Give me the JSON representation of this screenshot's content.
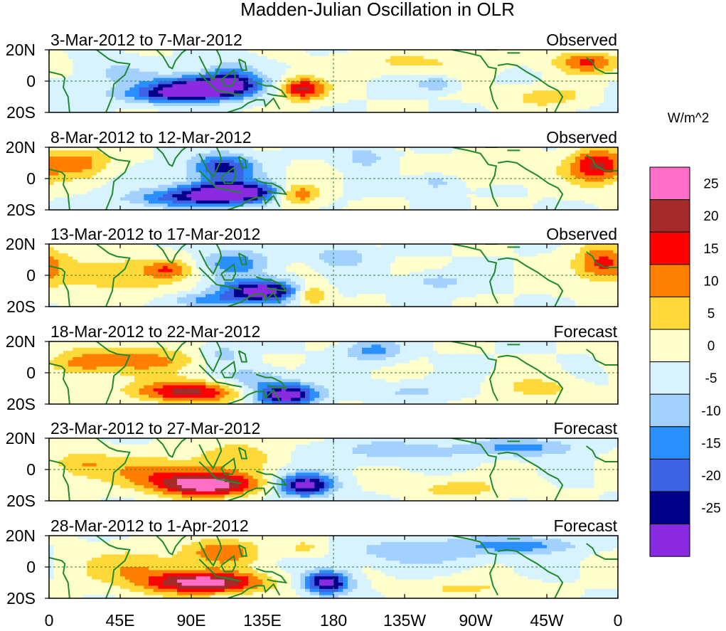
{
  "chart_data": {
    "type": "heatmap",
    "title": "Madden-Julian Oscillation in OLR",
    "units_label": "W/m^2",
    "x_tick_labels": [
      "0",
      "45E",
      "90E",
      "135E",
      "180",
      "135W",
      "90W",
      "45W",
      "0"
    ],
    "y_tick_labels": [
      "20N",
      "0",
      "20S"
    ],
    "x_range_deg": [
      0,
      360
    ],
    "y_range_deg": [
      -20,
      20
    ],
    "colorbar": {
      "levels": [
        25,
        20,
        15,
        10,
        5,
        0,
        -5,
        -10,
        -15,
        -20,
        -25
      ],
      "colors": [
        "#ff6ec7",
        "#a52a2a",
        "#ff0000",
        "#ff7f00",
        "#ffd939",
        "#ffffcc",
        "#d7f3ff",
        "#a3d1ff",
        "#2a8fff",
        "#3c63e6",
        "#00008b",
        "#8a2be2"
      ]
    },
    "panels": [
      {
        "period": "3-Mar-2012 to 7-Mar-2012",
        "kind": "Observed",
        "anomalies": [
          {
            "lon": 98,
            "lat": -4,
            "sx": 22,
            "sy": 5,
            "v": -32
          },
          {
            "lon": 115,
            "lat": 2,
            "sx": 12,
            "sy": 7,
            "v": -14
          },
          {
            "lon": 75,
            "lat": -9,
            "sx": 22,
            "sy": 4,
            "v": -15
          },
          {
            "lon": 42,
            "lat": 6,
            "sx": 16,
            "sy": 6,
            "v": -6
          },
          {
            "lon": 160,
            "lat": -5,
            "sx": 10,
            "sy": 5,
            "v": 22
          },
          {
            "lon": 230,
            "lat": 12,
            "sx": 30,
            "sy": 5,
            "v": 6
          },
          {
            "lon": 245,
            "lat": -2,
            "sx": 8,
            "sy": 3,
            "v": -11
          },
          {
            "lon": 340,
            "lat": 12,
            "sx": 14,
            "sy": 5,
            "v": 16
          },
          {
            "lon": 315,
            "lat": -10,
            "sx": 18,
            "sy": 5,
            "v": 8
          },
          {
            "lon": 12,
            "lat": -8,
            "sx": 14,
            "sy": 5,
            "v": -5
          }
        ]
      },
      {
        "period": "8-Mar-2012 to 12-Mar-2012",
        "kind": "Observed",
        "anomalies": [
          {
            "lon": 115,
            "lat": -9,
            "sx": 24,
            "sy": 5,
            "v": -32
          },
          {
            "lon": 110,
            "lat": 7,
            "sx": 14,
            "sy": 6,
            "v": -22
          },
          {
            "lon": 82,
            "lat": -13,
            "sx": 26,
            "sy": 4,
            "v": -12
          },
          {
            "lon": 157,
            "lat": -10,
            "sx": 10,
            "sy": 5,
            "v": 18
          },
          {
            "lon": 20,
            "lat": 10,
            "sx": 14,
            "sy": 7,
            "v": 12
          },
          {
            "lon": 200,
            "lat": 14,
            "sx": 10,
            "sy": 5,
            "v": -8
          },
          {
            "lon": 246,
            "lat": -2,
            "sx": 10,
            "sy": 4,
            "v": -9
          },
          {
            "lon": 346,
            "lat": 8,
            "sx": 12,
            "sy": 8,
            "v": 20
          },
          {
            "lon": 278,
            "lat": 6,
            "sx": 30,
            "sy": 6,
            "v": 5
          }
        ]
      },
      {
        "period": "13-Mar-2012 to 17-Mar-2012",
        "kind": "Observed",
        "anomalies": [
          {
            "lon": 135,
            "lat": -10,
            "sx": 18,
            "sy": 5,
            "v": -30
          },
          {
            "lon": 118,
            "lat": 8,
            "sx": 14,
            "sy": 6,
            "v": -14
          },
          {
            "lon": 102,
            "lat": -16,
            "sx": 18,
            "sy": 3,
            "v": -11
          },
          {
            "lon": 40,
            "lat": 0,
            "sx": 30,
            "sy": 10,
            "v": 8
          },
          {
            "lon": 165,
            "lat": -12,
            "sx": 8,
            "sy": 5,
            "v": 14
          },
          {
            "lon": 75,
            "lat": 4,
            "sx": 10,
            "sy": 4,
            "v": 11
          },
          {
            "lon": 185,
            "lat": 12,
            "sx": 12,
            "sy": 5,
            "v": -9
          },
          {
            "lon": 245,
            "lat": -4,
            "sx": 12,
            "sy": 4,
            "v": -8
          },
          {
            "lon": 350,
            "lat": 8,
            "sx": 12,
            "sy": 8,
            "v": 16
          }
        ]
      },
      {
        "period": "18-Mar-2012 to 22-Mar-2012",
        "kind": "Forecast",
        "anomalies": [
          {
            "lon": 150,
            "lat": -14,
            "sx": 14,
            "sy": 5,
            "v": -30
          },
          {
            "lon": 128,
            "lat": -4,
            "sx": 14,
            "sy": 5,
            "v": -10
          },
          {
            "lon": 110,
            "lat": 12,
            "sx": 10,
            "sy": 5,
            "v": -8
          },
          {
            "lon": 88,
            "lat": -12,
            "sx": 24,
            "sy": 5,
            "v": 22
          },
          {
            "lon": 60,
            "lat": 8,
            "sx": 26,
            "sy": 6,
            "v": 12
          },
          {
            "lon": 205,
            "lat": 14,
            "sx": 12,
            "sy": 5,
            "v": -12
          },
          {
            "lon": 230,
            "lat": -12,
            "sx": 20,
            "sy": 4,
            "v": -6
          },
          {
            "lon": 20,
            "lat": 6,
            "sx": 14,
            "sy": 6,
            "v": 10
          },
          {
            "lon": 310,
            "lat": -10,
            "sx": 18,
            "sy": 5,
            "v": 7
          }
        ]
      },
      {
        "period": "23-Mar-2012 to 27-Mar-2012",
        "kind": "Forecast",
        "anomalies": [
          {
            "lon": 162,
            "lat": -10,
            "sx": 12,
            "sy": 5,
            "v": -30
          },
          {
            "lon": 100,
            "lat": -10,
            "sx": 22,
            "sy": 5,
            "v": 28
          },
          {
            "lon": 75,
            "lat": -2,
            "sx": 30,
            "sy": 7,
            "v": 12
          },
          {
            "lon": 120,
            "lat": 10,
            "sx": 16,
            "sy": 6,
            "v": 8
          },
          {
            "lon": 220,
            "lat": 12,
            "sx": 30,
            "sy": 5,
            "v": -8
          },
          {
            "lon": 300,
            "lat": 14,
            "sx": 24,
            "sy": 4,
            "v": -12
          },
          {
            "lon": 260,
            "lat": -12,
            "sx": 24,
            "sy": 5,
            "v": 7
          },
          {
            "lon": 20,
            "lat": 4,
            "sx": 14,
            "sy": 6,
            "v": 9
          }
        ]
      },
      {
        "period": "28-Mar-2012 to 1-Apr-2012",
        "kind": "Forecast",
        "anomalies": [
          {
            "lon": 176,
            "lat": -10,
            "sx": 10,
            "sy": 5,
            "v": -30
          },
          {
            "lon": 98,
            "lat": -10,
            "sx": 26,
            "sy": 5,
            "v": 28
          },
          {
            "lon": 110,
            "lat": 10,
            "sx": 16,
            "sy": 6,
            "v": 14
          },
          {
            "lon": 55,
            "lat": 0,
            "sx": 26,
            "sy": 8,
            "v": 9
          },
          {
            "lon": 235,
            "lat": 10,
            "sx": 34,
            "sy": 6,
            "v": -9
          },
          {
            "lon": 300,
            "lat": 14,
            "sx": 24,
            "sy": 4,
            "v": -12
          },
          {
            "lon": 265,
            "lat": -14,
            "sx": 26,
            "sy": 4,
            "v": 6
          },
          {
            "lon": 162,
            "lat": 12,
            "sx": 10,
            "sy": 4,
            "v": 7
          }
        ]
      }
    ]
  }
}
